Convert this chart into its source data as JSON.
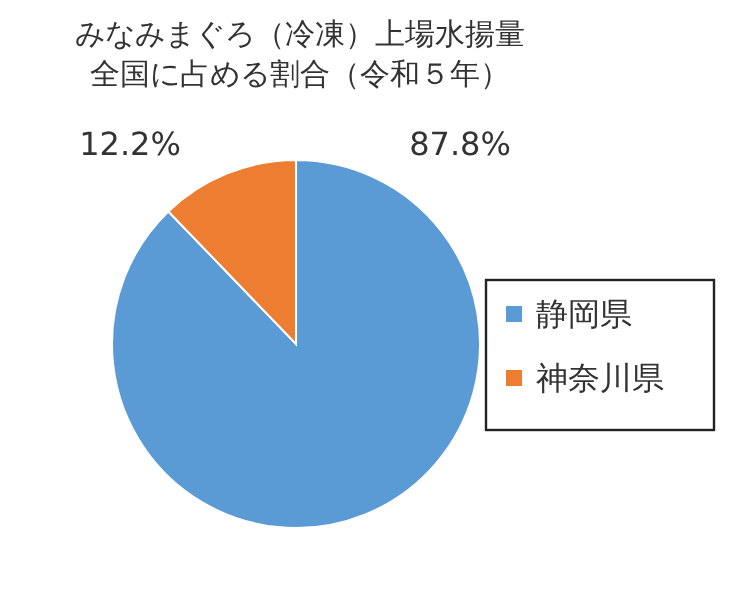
{
  "chart_data": {
    "type": "pie",
    "title": "みなみまぐろ（冷凍）上場水揚量全国に占める割合（令和５年）",
    "categories": [
      "静岡県",
      "神奈川県"
    ],
    "values": [
      87.8,
      12.2
    ],
    "colors": [
      "#5b9bd5",
      "#ed7d31"
    ],
    "value_labels": [
      "87.8%",
      "12.2%"
    ],
    "legend": "right"
  }
}
